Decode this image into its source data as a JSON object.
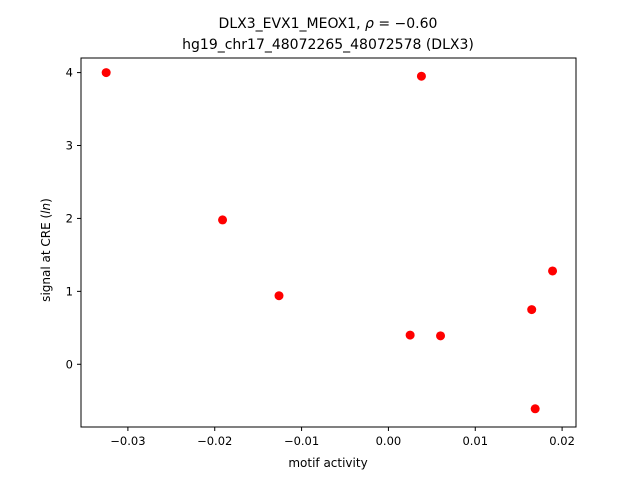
{
  "chart_data": {
    "type": "scatter",
    "title_line1_prefix": "DLX3_EVX1_MEOX1, ",
    "title_rho_symbol": "ρ",
    "title_rho_value": " = −0.60",
    "title_line2": "hg19_chr17_48072265_48072578 (DLX3)",
    "xlabel": "motif activity",
    "ylabel_prefix": "signal at CRE (",
    "ylabel_italic": "ln",
    "ylabel_suffix": ")",
    "xlim": [
      -0.0354,
      0.0216
    ],
    "ylim": [
      -0.86,
      4.2
    ],
    "xticks": [
      -0.03,
      -0.02,
      -0.01,
      0.0,
      0.01,
      0.02
    ],
    "xtick_labels": [
      "−0.03",
      "−0.02",
      "−0.01",
      "0.00",
      "0.01",
      "0.02"
    ],
    "yticks": [
      0,
      1,
      2,
      3,
      4
    ],
    "ytick_labels": [
      "0",
      "1",
      "2",
      "3",
      "4"
    ],
    "marker_color": "#ff0000",
    "grid": false,
    "points": [
      {
        "x": -0.0325,
        "y": 4.0
      },
      {
        "x": 0.0038,
        "y": 3.95
      },
      {
        "x": -0.0191,
        "y": 1.98
      },
      {
        "x": -0.0126,
        "y": 0.94
      },
      {
        "x": 0.0025,
        "y": 0.4
      },
      {
        "x": 0.006,
        "y": 0.39
      },
      {
        "x": 0.0165,
        "y": 0.75
      },
      {
        "x": 0.0189,
        "y": 1.28
      },
      {
        "x": 0.0169,
        "y": -0.61
      }
    ]
  }
}
